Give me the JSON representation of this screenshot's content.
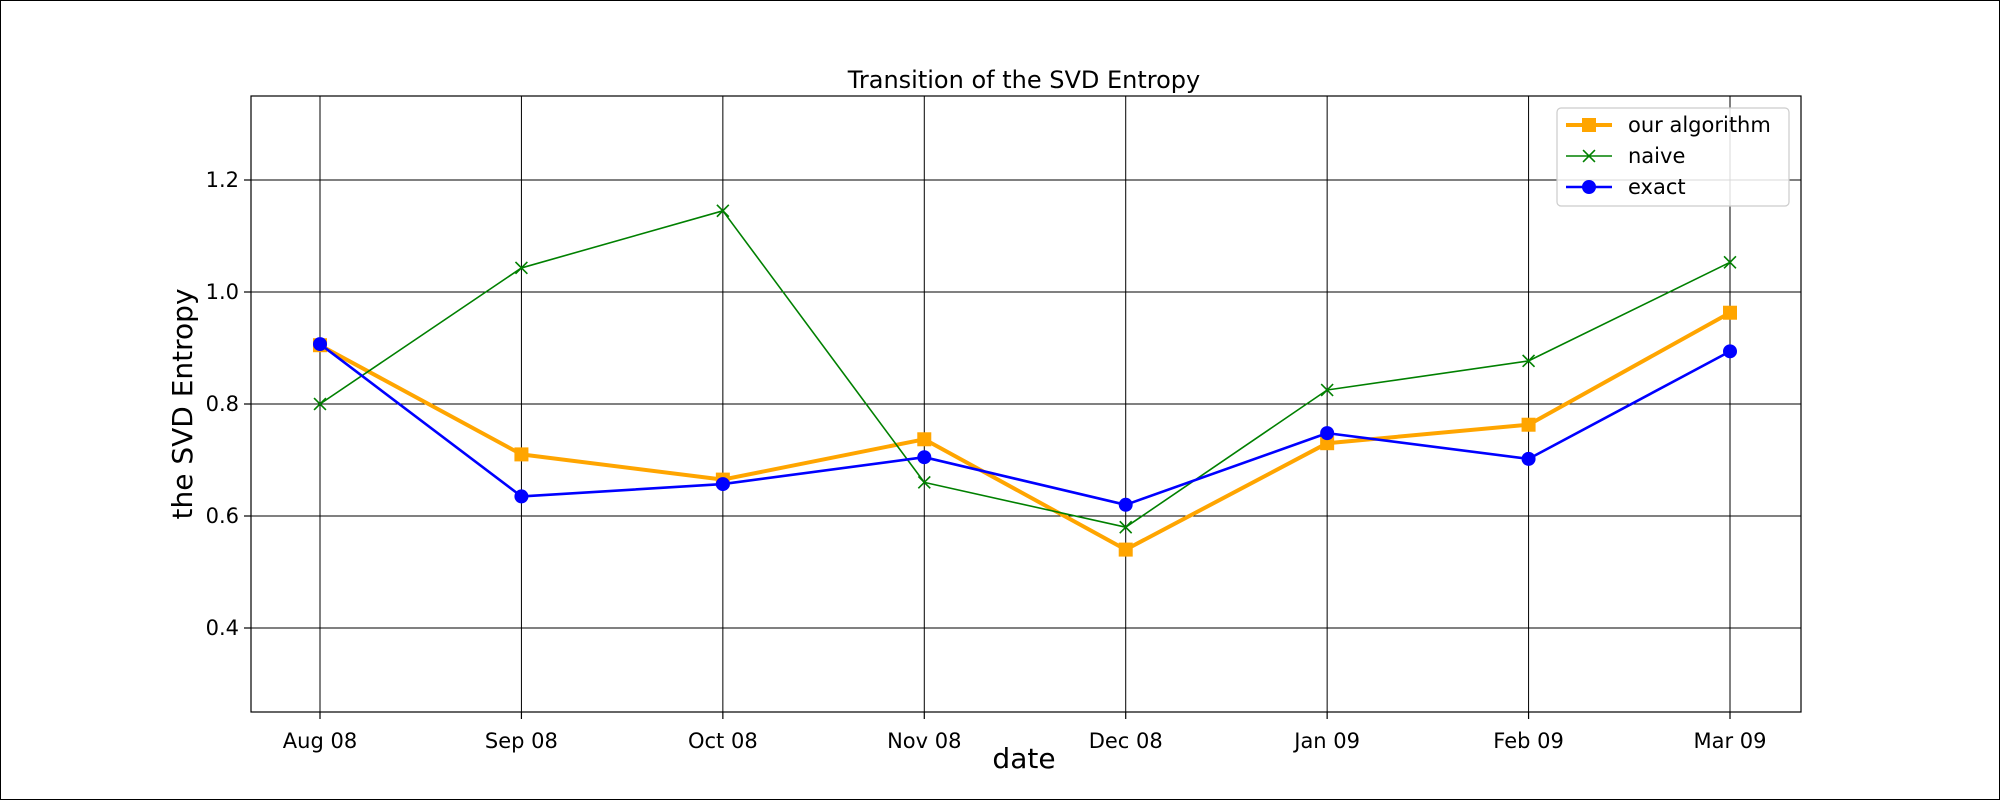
{
  "chart_data": {
    "type": "line",
    "title": "Transition of the SVD Entropy",
    "xlabel": "date",
    "ylabel": "the SVD Entropy",
    "categories": [
      "Aug 08",
      "Sep 08",
      "Oct 08",
      "Nov 08",
      "Dec 08",
      "Jan 09",
      "Feb 09",
      "Mar 09"
    ],
    "ylim": [
      0.25,
      1.35
    ],
    "yticks": [
      "0.4",
      "0.6",
      "0.8",
      "1.0",
      "1.2"
    ],
    "grid": true,
    "legend_position": "top-right",
    "series": [
      {
        "name": "our algorithm",
        "color": "#ffa500",
        "marker": "square",
        "values": [
          0.905,
          0.71,
          0.665,
          0.737,
          0.54,
          0.73,
          0.763,
          0.963
        ]
      },
      {
        "name": "naive",
        "color": "#008000",
        "marker": "x",
        "values": [
          0.8,
          1.043,
          1.145,
          0.66,
          0.58,
          0.825,
          0.877,
          1.053
        ]
      },
      {
        "name": "exact",
        "color": "#0000ff",
        "marker": "circle",
        "values": [
          0.907,
          0.635,
          0.657,
          0.705,
          0.62,
          0.748,
          0.702,
          0.894
        ]
      }
    ]
  }
}
